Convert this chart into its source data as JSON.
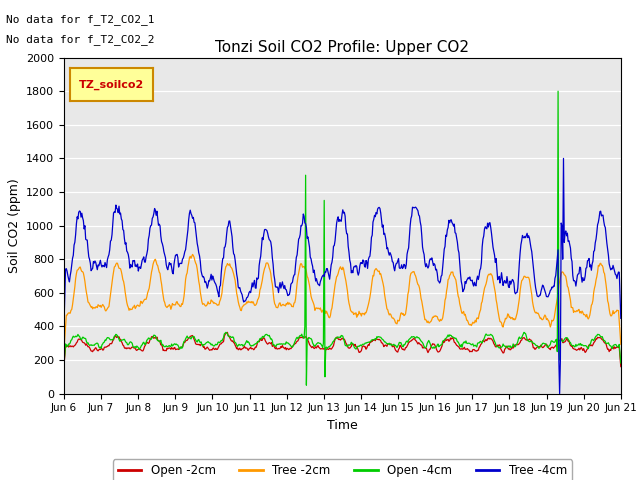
{
  "title": "Tonzi Soil CO2 Profile: Upper CO2",
  "ylabel": "Soil CO2 (ppm)",
  "xlabel": "Time",
  "no_data_text1": "No data for f_T2_CO2_1",
  "no_data_text2": "No data for f_T2_CO2_2",
  "legend_label": "TZ_soilco2",
  "series_labels": [
    "Open -2cm",
    "Tree -2cm",
    "Open -4cm",
    "Tree -4cm"
  ],
  "series_colors": [
    "#cc0000",
    "#ff9900",
    "#00cc00",
    "#0000cc"
  ],
  "ylim": [
    0,
    2000
  ],
  "tick_labels": [
    "Jun 6",
    "Jun 7",
    "Jun 8",
    "Jun 9",
    "Jun 10",
    "Jun 11",
    "Jun 12",
    "Jun 13",
    "Jun 14",
    "Jun 15",
    "Jun 16",
    "Jun 17",
    "Jun 18",
    "Jun 19",
    "Jun 20",
    "Jun 21"
  ],
  "bg_color": "#e8e8e8"
}
